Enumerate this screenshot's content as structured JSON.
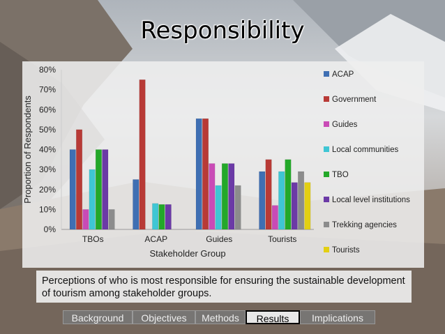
{
  "title": "Responsibility",
  "caption": "Perceptions of who is most responsible for ensuring the sustainable development of tourism among stakeholder groups.",
  "nav": {
    "tabs": [
      {
        "label": "Background",
        "active": false
      },
      {
        "label": "Objectives",
        "active": false
      },
      {
        "label": "Methods",
        "active": false
      },
      {
        "label": "Results",
        "active": true
      },
      {
        "label": "Implications",
        "active": false
      }
    ]
  },
  "chart_data": {
    "type": "bar",
    "title": "",
    "xlabel": "Stakeholder Group",
    "ylabel": "Proportion of Respondents",
    "ylim": [
      0,
      80
    ],
    "yticks": [
      "0%",
      "10%",
      "20%",
      "30%",
      "40%",
      "50%",
      "60%",
      "70%",
      "80%"
    ],
    "legend": "right",
    "categories": [
      "TBOs",
      "ACAP",
      "Guides",
      "Tourists"
    ],
    "series": [
      {
        "name": "ACAP",
        "color": "#3f6fb3",
        "values": [
          40,
          25,
          55.5,
          29
        ]
      },
      {
        "name": "Government",
        "color": "#b83a36",
        "values": [
          50,
          75,
          55.5,
          35
        ]
      },
      {
        "name": "Guides",
        "color": "#c94bb6",
        "values": [
          10,
          null,
          33,
          12
        ]
      },
      {
        "name": "Local communities",
        "color": "#3fc6d4",
        "values": [
          30,
          13,
          22,
          29
        ]
      },
      {
        "name": "TBO",
        "color": "#23a829",
        "values": [
          40,
          12.5,
          33,
          35
        ]
      },
      {
        "name": "Local level institutions",
        "color": "#6b3aa6",
        "values": [
          40,
          12.5,
          33,
          23.5
        ]
      },
      {
        "name": "Trekking agencies",
        "color": "#8c8c8c",
        "values": [
          10,
          null,
          22,
          29
        ]
      },
      {
        "name": "Tourists",
        "color": "#e3cf13",
        "values": [
          null,
          null,
          null,
          23.5
        ]
      }
    ]
  }
}
